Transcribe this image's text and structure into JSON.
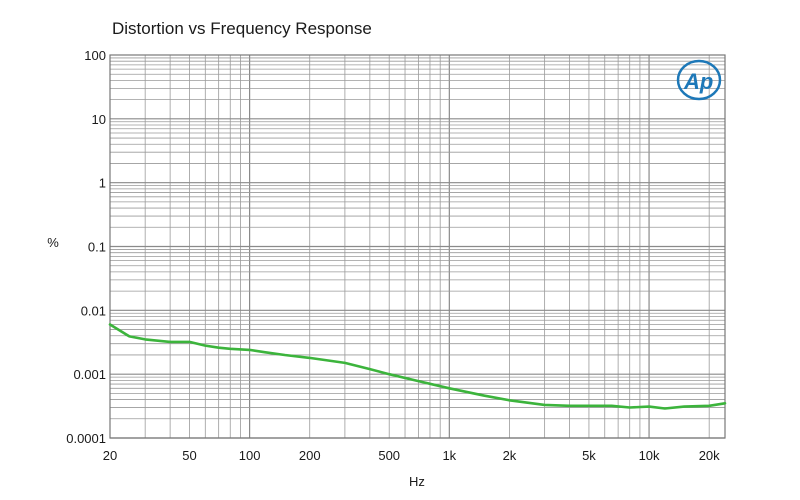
{
  "chart_data": {
    "type": "line",
    "title": "Distortion vs Frequency Response",
    "xlabel": "Hz",
    "ylabel": "%",
    "x_scale": "log",
    "y_scale": "log",
    "xlim": [
      20,
      24000
    ],
    "ylim": [
      0.0001,
      100
    ],
    "grid": true,
    "x_ticks": [
      {
        "value": 20,
        "label": "20"
      },
      {
        "value": 50,
        "label": "50"
      },
      {
        "value": 100,
        "label": "100"
      },
      {
        "value": 200,
        "label": "200"
      },
      {
        "value": 500,
        "label": "500"
      },
      {
        "value": 1000,
        "label": "1k"
      },
      {
        "value": 2000,
        "label": "2k"
      },
      {
        "value": 5000,
        "label": "5k"
      },
      {
        "value": 10000,
        "label": "10k"
      },
      {
        "value": 20000,
        "label": "20k"
      }
    ],
    "y_ticks": [
      {
        "value": 100,
        "label": "100"
      },
      {
        "value": 10,
        "label": "10"
      },
      {
        "value": 1,
        "label": "1"
      },
      {
        "value": 0.1,
        "label": "0.1"
      },
      {
        "value": 0.01,
        "label": "0.01"
      },
      {
        "value": 0.001,
        "label": "0.001"
      },
      {
        "value": 0.0001,
        "label": "0.0001"
      }
    ],
    "series": [
      {
        "color": "#3cb43c",
        "x": [
          20,
          25,
          30,
          40,
          50,
          60,
          70,
          80,
          100,
          120,
          150,
          200,
          300,
          400,
          500,
          700,
          1000,
          1500,
          2000,
          3000,
          4000,
          5000,
          6500,
          8000,
          10000,
          12000,
          15000,
          20000,
          24000
        ],
        "y": [
          0.006,
          0.0039,
          0.0035,
          0.0032,
          0.0032,
          0.0028,
          0.0026,
          0.0025,
          0.0024,
          0.0022,
          0.002,
          0.0018,
          0.0015,
          0.0012,
          0.001,
          0.00078,
          0.0006,
          0.00046,
          0.00039,
          0.00033,
          0.00032,
          0.00032,
          0.00032,
          0.0003,
          0.00031,
          0.00029,
          0.00031,
          0.00032,
          0.00035
        ]
      }
    ]
  },
  "logo": {
    "text": "Ap"
  }
}
